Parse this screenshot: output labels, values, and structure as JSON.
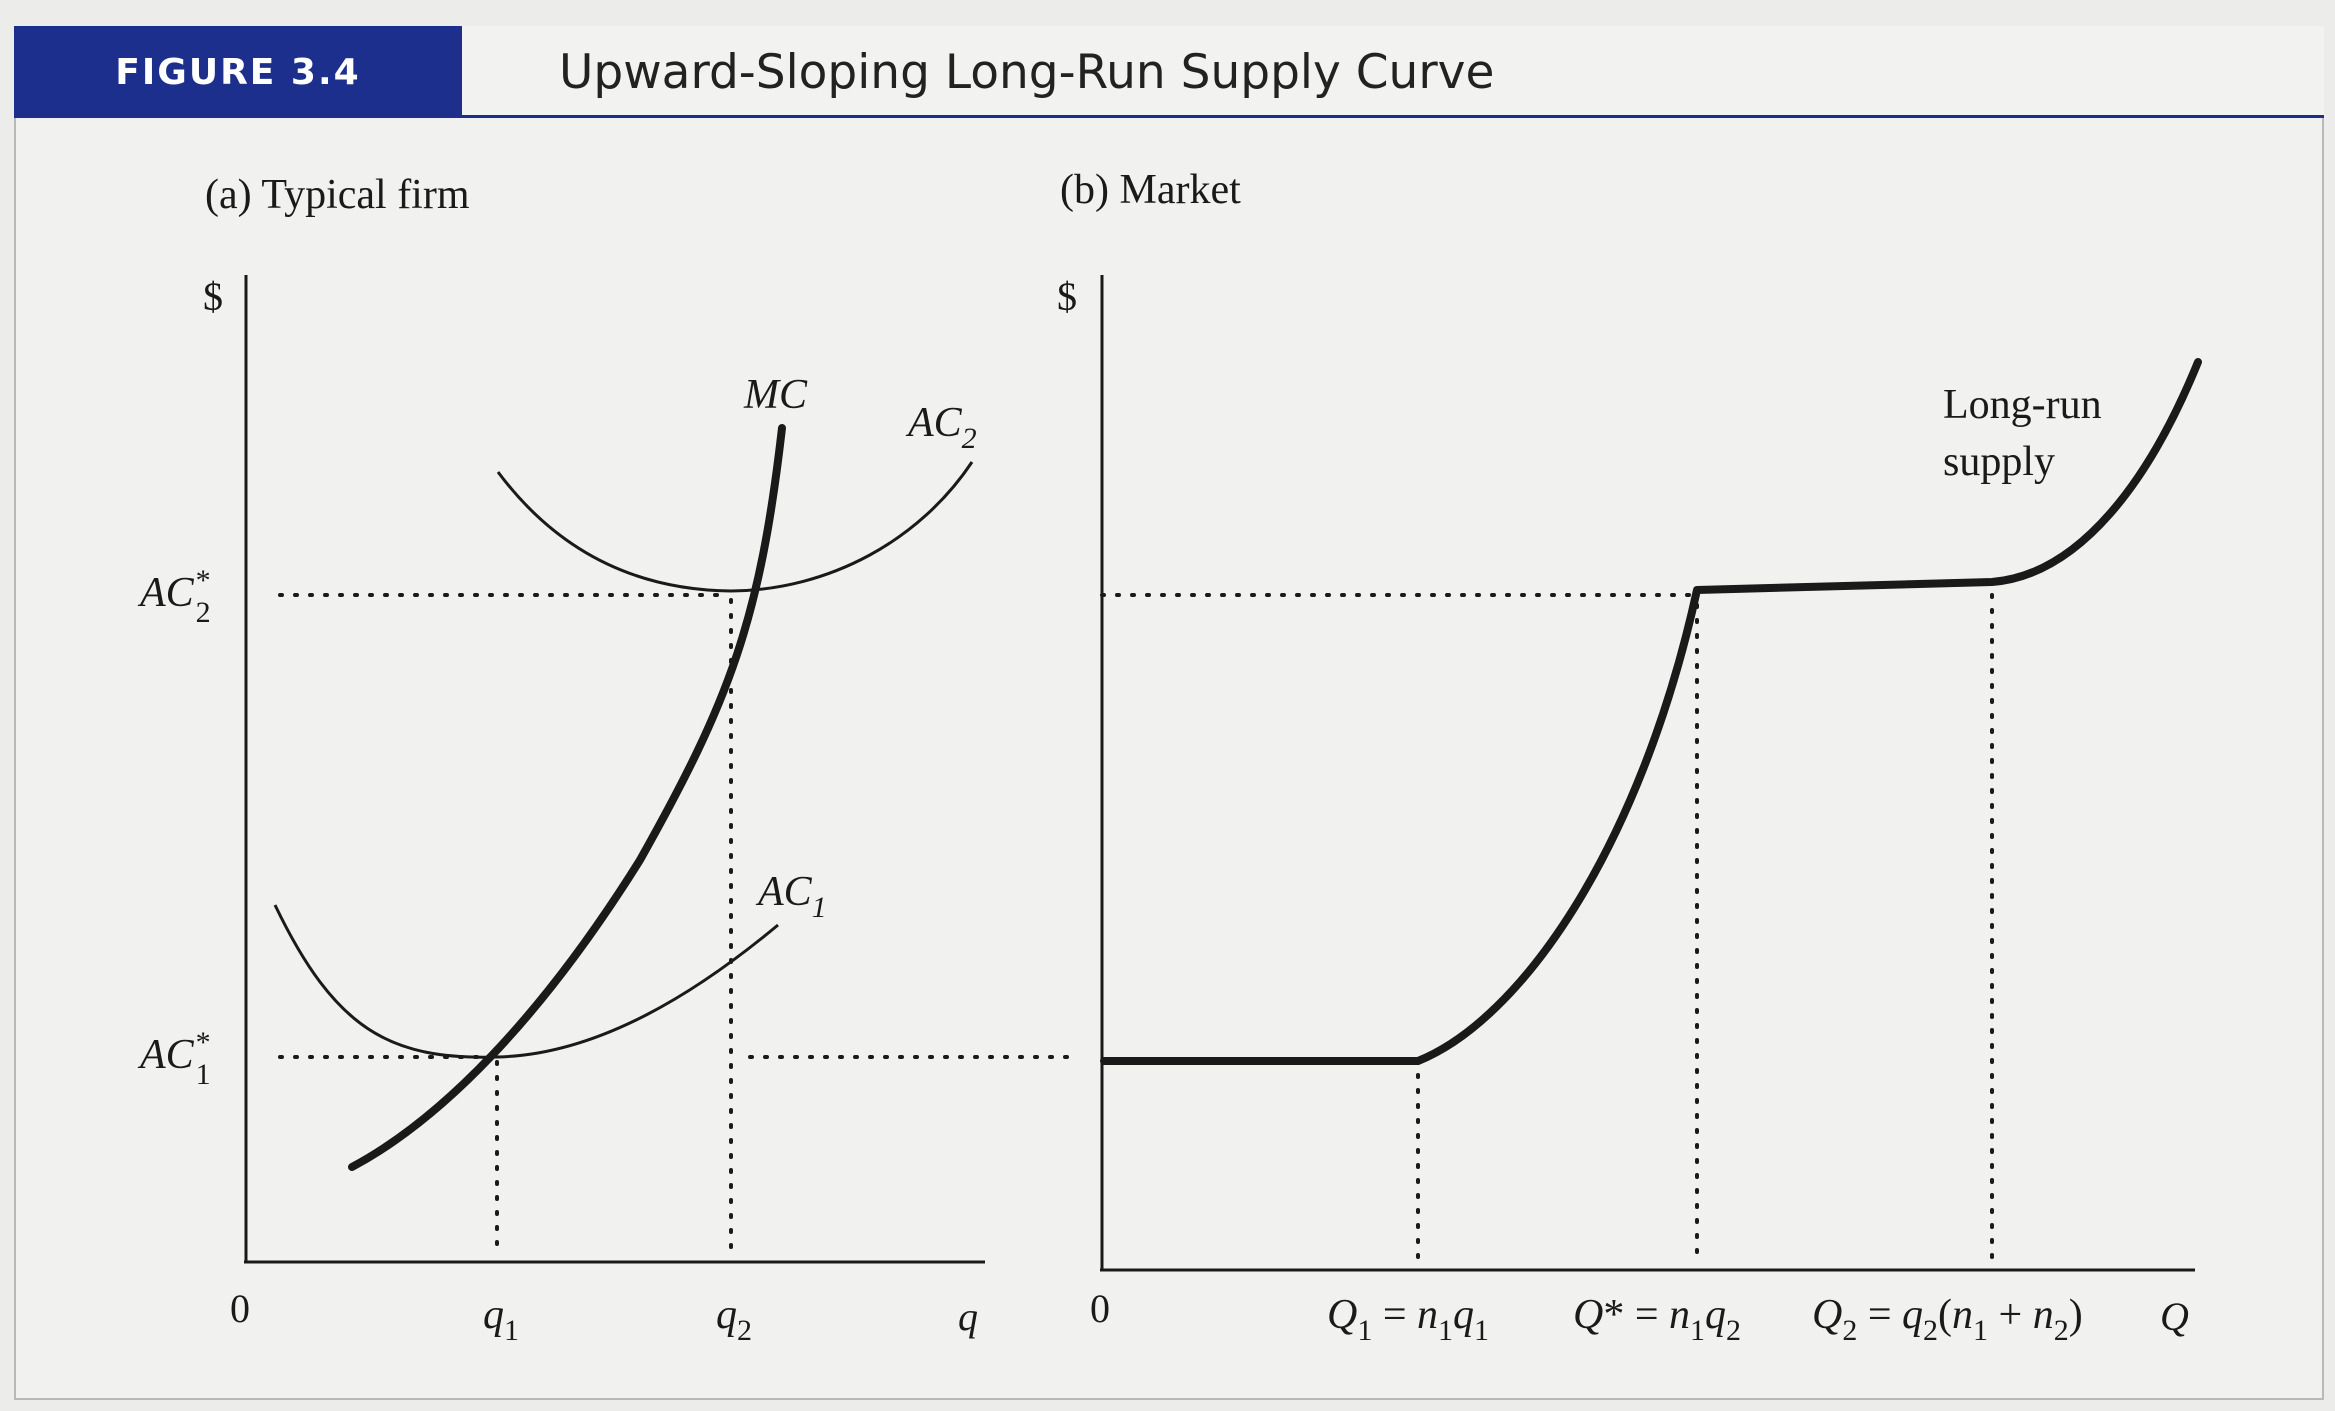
{
  "figure": {
    "label": "FIGURE 3.4",
    "title": "Upward-Sloping Long-Run Supply Curve"
  },
  "panel_a": {
    "caption": "(a) Typical firm",
    "y_axis_label": "$",
    "origin": "0",
    "x_axis_label": "q",
    "x_ticks": [
      "q1",
      "q2"
    ],
    "y_ticks": [
      "AC*2",
      "AC*1"
    ],
    "curves": {
      "mc": "MC",
      "ac1": "AC1",
      "ac2": "AC2"
    }
  },
  "panel_b": {
    "caption": "(b) Market",
    "y_axis_label": "$",
    "origin": "0",
    "x_axis_label": "Q",
    "x_ticks": [
      "Q1 = n1q1",
      "Q* = n1q2",
      "Q2 = q2(n1 + n2)"
    ],
    "supply_label_line1": "Long-run",
    "supply_label_line2": "supply"
  },
  "colors": {
    "header_blue": "#1d2f8c",
    "ink": "#1a1a1a",
    "page": "#f1f1ef"
  }
}
